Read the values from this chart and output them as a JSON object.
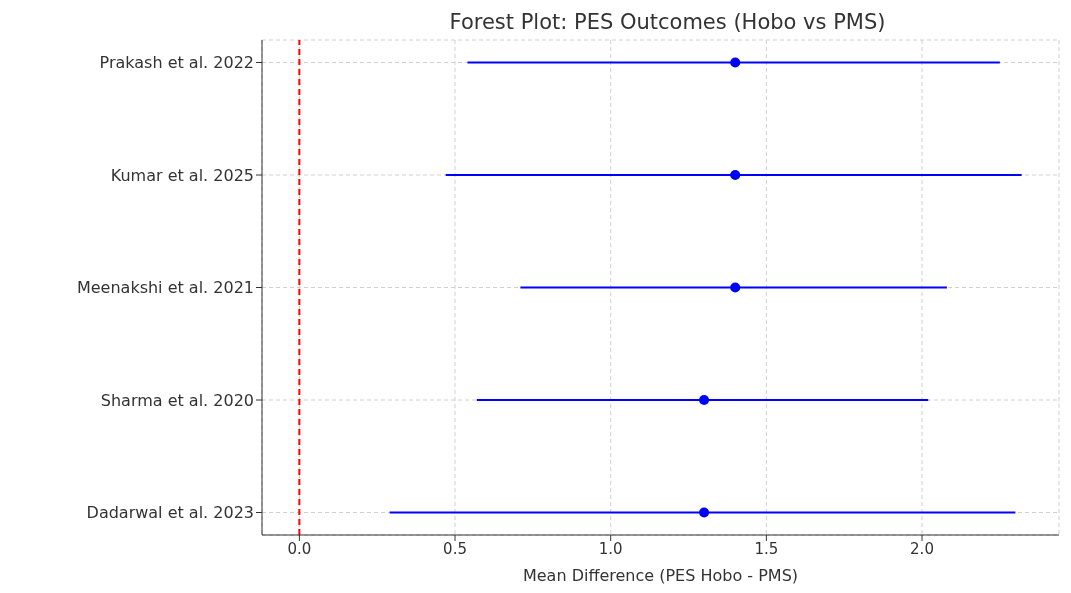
{
  "chart_data": {
    "type": "scatter",
    "orientation": "horizontal",
    "title": "Forest Plot: PES Outcomes (Hobo vs PMS)",
    "xlabel": "Mean Difference (PES Hobo - PMS)",
    "categories": [
      "Prakash et al. 2022",
      "Kumar et al. 2025",
      "Meenakshi et al. 2021",
      "Sharma et al. 2020",
      "Dadarwal et al. 2023"
    ],
    "values": [
      1.4,
      1.4,
      1.4,
      1.3,
      1.3
    ],
    "errors": [
      [
        0.54,
        2.25
      ],
      [
        0.47,
        2.32
      ],
      [
        0.71,
        2.08
      ],
      [
        0.57,
        2.02
      ],
      [
        0.29,
        2.3
      ]
    ],
    "color": "#0000ff",
    "marker": "circle",
    "xlim": [
      -0.12,
      2.44
    ],
    "xticks": [
      {
        "value": 0,
        "label": "0.0"
      },
      0.5,
      {
        "value": 1,
        "label": "1.0"
      },
      1.5,
      {
        "value": 2,
        "label": "2.0"
      }
    ],
    "grid": true,
    "ref_lines": [
      {
        "axis": "x",
        "value": 0,
        "label": null,
        "color": "#ff0000",
        "line_style": "dashed"
      }
    ]
  }
}
